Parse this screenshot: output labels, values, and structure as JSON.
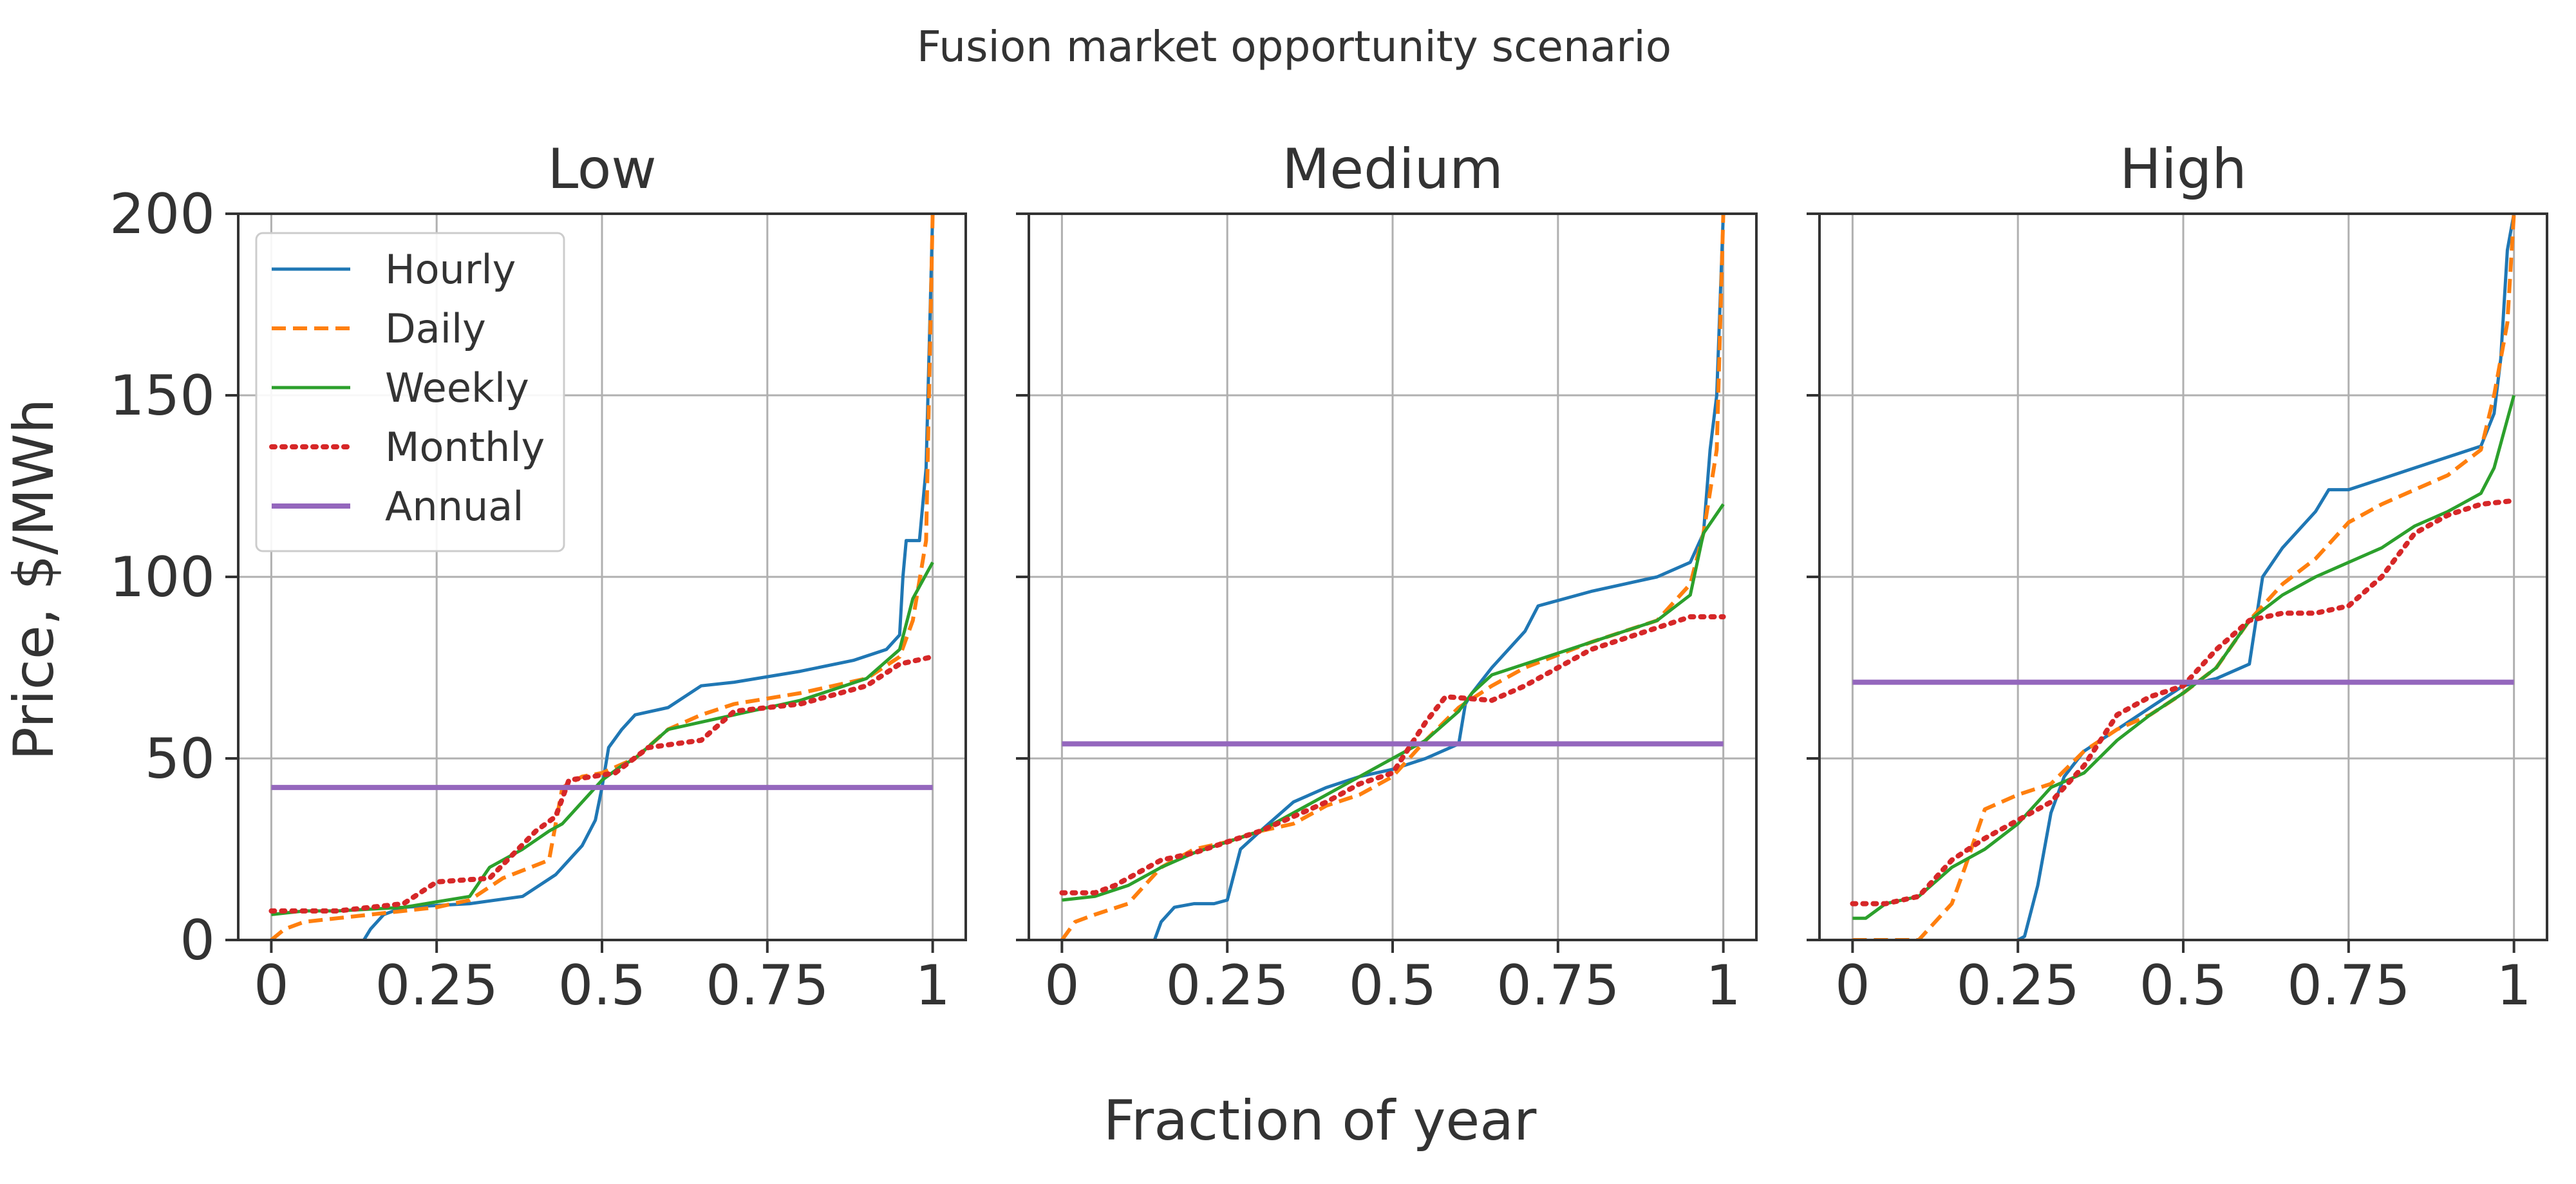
{
  "chart_data": {
    "type": "line",
    "title": "Fusion market opportunity scenario",
    "xlabel": "Fraction of year",
    "ylabel": "Price, $/MWh",
    "xlim": [
      -0.05,
      1.05
    ],
    "ylim": [
      0,
      200
    ],
    "x_ticks": [
      0,
      0.25,
      0.5,
      0.75,
      1
    ],
    "x_tick_labels": [
      "0",
      "0.25",
      "0.5",
      "0.75",
      "1"
    ],
    "y_ticks": [
      0,
      50,
      100,
      150,
      200
    ],
    "y_tick_labels": [
      "0",
      "50",
      "100",
      "150",
      "200"
    ],
    "grid": true,
    "legend_location": "upper left",
    "legend_panel": "Low",
    "series_styles": [
      {
        "name": "Hourly",
        "color": "#1f77b4",
        "dash": "solid"
      },
      {
        "name": "Daily",
        "color": "#ff7f0e",
        "dash": "dashed"
      },
      {
        "name": "Weekly",
        "color": "#2ca02c",
        "dash": "solid"
      },
      {
        "name": "Monthly",
        "color": "#d62728",
        "dash": "dotted"
      },
      {
        "name": "Annual",
        "color": "#9467bd",
        "dash": "solid"
      }
    ],
    "panels": [
      {
        "title": "Low",
        "series": [
          {
            "name": "Hourly",
            "x": [
              0.14,
              0.15,
              0.17,
              0.2,
              0.3,
              0.38,
              0.43,
              0.47,
              0.49,
              0.5,
              0.51,
              0.53,
              0.55,
              0.6,
              0.65,
              0.7,
              0.8,
              0.88,
              0.93,
              0.95,
              0.955,
              0.96,
              0.98,
              0.99,
              1.0
            ],
            "y": [
              0,
              3,
              7,
              9,
              10,
              12,
              18,
              26,
              33,
              42,
              53,
              58,
              62,
              64,
              70,
              71,
              74,
              77,
              80,
              84,
              100,
              110,
              110,
              130,
              200
            ]
          },
          {
            "name": "Daily",
            "x": [
              0,
              0.02,
              0.05,
              0.1,
              0.15,
              0.2,
              0.25,
              0.3,
              0.35,
              0.42,
              0.44,
              0.47,
              0.5,
              0.55,
              0.6,
              0.65,
              0.7,
              0.8,
              0.9,
              0.95,
              0.97,
              0.99,
              1.0
            ],
            "y": [
              0,
              3,
              5,
              6,
              7,
              8,
              9,
              11,
              17,
              22,
              42,
              45,
              46,
              50,
              58,
              62,
              65,
              68,
              72,
              78,
              88,
              110,
              200
            ]
          },
          {
            "name": "Weekly",
            "x": [
              0,
              0.05,
              0.1,
              0.2,
              0.3,
              0.33,
              0.38,
              0.42,
              0.44,
              0.47,
              0.5,
              0.53,
              0.55,
              0.6,
              0.7,
              0.8,
              0.9,
              0.95,
              0.97,
              1.0
            ],
            "y": [
              7,
              8,
              8,
              9,
              12,
              20,
              25,
              30,
              32,
              38,
              44,
              48,
              50,
              58,
              62,
              66,
              72,
              80,
              94,
              104
            ]
          },
          {
            "name": "Monthly",
            "x": [
              0,
              0.1,
              0.2,
              0.25,
              0.33,
              0.4,
              0.43,
              0.45,
              0.52,
              0.57,
              0.65,
              0.7,
              0.8,
              0.9,
              0.95,
              1.0
            ],
            "y": [
              8,
              8,
              10,
              16,
              17,
              30,
              34,
              44,
              46,
              53,
              55,
              63,
              65,
              70,
              76,
              78
            ]
          },
          {
            "name": "Annual",
            "x": [
              0,
              1
            ],
            "y": [
              42,
              42
            ]
          }
        ]
      },
      {
        "title": "Medium",
        "series": [
          {
            "name": "Hourly",
            "x": [
              0.14,
              0.15,
              0.17,
              0.2,
              0.23,
              0.25,
              0.27,
              0.3,
              0.35,
              0.4,
              0.45,
              0.5,
              0.55,
              0.6,
              0.61,
              0.62,
              0.65,
              0.7,
              0.72,
              0.8,
              0.85,
              0.9,
              0.95,
              0.97,
              0.98,
              0.99,
              1.0
            ],
            "y": [
              0,
              5,
              9,
              10,
              10,
              11,
              25,
              30,
              38,
              42,
              45,
              47,
              50,
              54,
              65,
              68,
              75,
              85,
              92,
              96,
              98,
              100,
              104,
              112,
              135,
              150,
              200
            ]
          },
          {
            "name": "Daily",
            "x": [
              0,
              0.02,
              0.05,
              0.1,
              0.15,
              0.2,
              0.25,
              0.3,
              0.35,
              0.4,
              0.45,
              0.5,
              0.55,
              0.6,
              0.65,
              0.7,
              0.8,
              0.9,
              0.95,
              0.97,
              0.99,
              1.0
            ],
            "y": [
              0,
              5,
              7,
              10,
              20,
              25,
              27,
              30,
              32,
              37,
              40,
              45,
              55,
              64,
              70,
              75,
              82,
              88,
              98,
              112,
              135,
              200
            ]
          },
          {
            "name": "Weekly",
            "x": [
              0,
              0.05,
              0.1,
              0.15,
              0.2,
              0.3,
              0.4,
              0.5,
              0.55,
              0.6,
              0.62,
              0.65,
              0.7,
              0.8,
              0.9,
              0.95,
              0.97,
              1.0
            ],
            "y": [
              11,
              12,
              15,
              20,
              24,
              30,
              40,
              50,
              55,
              63,
              68,
              73,
              76,
              82,
              88,
              95,
              112,
              120
            ]
          },
          {
            "name": "Monthly",
            "x": [
              0,
              0.05,
              0.08,
              0.15,
              0.2,
              0.3,
              0.4,
              0.45,
              0.5,
              0.55,
              0.58,
              0.65,
              0.7,
              0.8,
              0.9,
              0.95,
              1.0
            ],
            "y": [
              13,
              13,
              15,
              22,
              24,
              30,
              38,
              43,
              46,
              60,
              67,
              66,
              70,
              80,
              86,
              89,
              89
            ]
          },
          {
            "name": "Annual",
            "x": [
              0,
              1
            ],
            "y": [
              54,
              54
            ]
          }
        ]
      },
      {
        "title": "High",
        "series": [
          {
            "name": "Hourly",
            "x": [
              0.25,
              0.26,
              0.28,
              0.3,
              0.32,
              0.35,
              0.4,
              0.45,
              0.5,
              0.55,
              0.6,
              0.62,
              0.65,
              0.7,
              0.72,
              0.75,
              0.8,
              0.85,
              0.9,
              0.95,
              0.97,
              0.98,
              0.99,
              1.0
            ],
            "y": [
              0,
              1,
              15,
              35,
              45,
              52,
              58,
              64,
              70,
              72,
              76,
              100,
              108,
              118,
              124,
              124,
              127,
              130,
              133,
              136,
              145,
              160,
              190,
              200
            ]
          },
          {
            "name": "Daily",
            "x": [
              0,
              0.05,
              0.1,
              0.15,
              0.17,
              0.2,
              0.25,
              0.3,
              0.35,
              0.4,
              0.45,
              0.5,
              0.55,
              0.6,
              0.65,
              0.7,
              0.75,
              0.8,
              0.85,
              0.9,
              0.95,
              0.97,
              0.99,
              1.0
            ],
            "y": [
              0,
              0,
              0,
              10,
              20,
              36,
              40,
              43,
              52,
              58,
              62,
              68,
              75,
              88,
              98,
              105,
              115,
              120,
              124,
              128,
              135,
              150,
              170,
              200
            ]
          },
          {
            "name": "Weekly",
            "x": [
              0,
              0.02,
              0.05,
              0.1,
              0.15,
              0.2,
              0.25,
              0.3,
              0.35,
              0.4,
              0.45,
              0.5,
              0.55,
              0.6,
              0.65,
              0.7,
              0.75,
              0.8,
              0.85,
              0.9,
              0.95,
              0.97,
              1.0
            ],
            "y": [
              6,
              6,
              10,
              12,
              20,
              25,
              32,
              42,
              46,
              55,
              62,
              68,
              75,
              88,
              95,
              100,
              104,
              108,
              114,
              118,
              123,
              130,
              150
            ]
          },
          {
            "name": "Monthly",
            "x": [
              0,
              0.05,
              0.1,
              0.15,
              0.2,
              0.25,
              0.3,
              0.35,
              0.4,
              0.45,
              0.5,
              0.55,
              0.6,
              0.65,
              0.7,
              0.75,
              0.8,
              0.85,
              0.9,
              0.95,
              1.0
            ],
            "y": [
              10,
              10,
              12,
              22,
              28,
              33,
              38,
              48,
              62,
              67,
              70,
              80,
              88,
              90,
              90,
              92,
              100,
              112,
              117,
              120,
              121
            ]
          },
          {
            "name": "Annual",
            "x": [
              0,
              1
            ],
            "y": [
              71,
              71
            ]
          }
        ]
      }
    ]
  }
}
